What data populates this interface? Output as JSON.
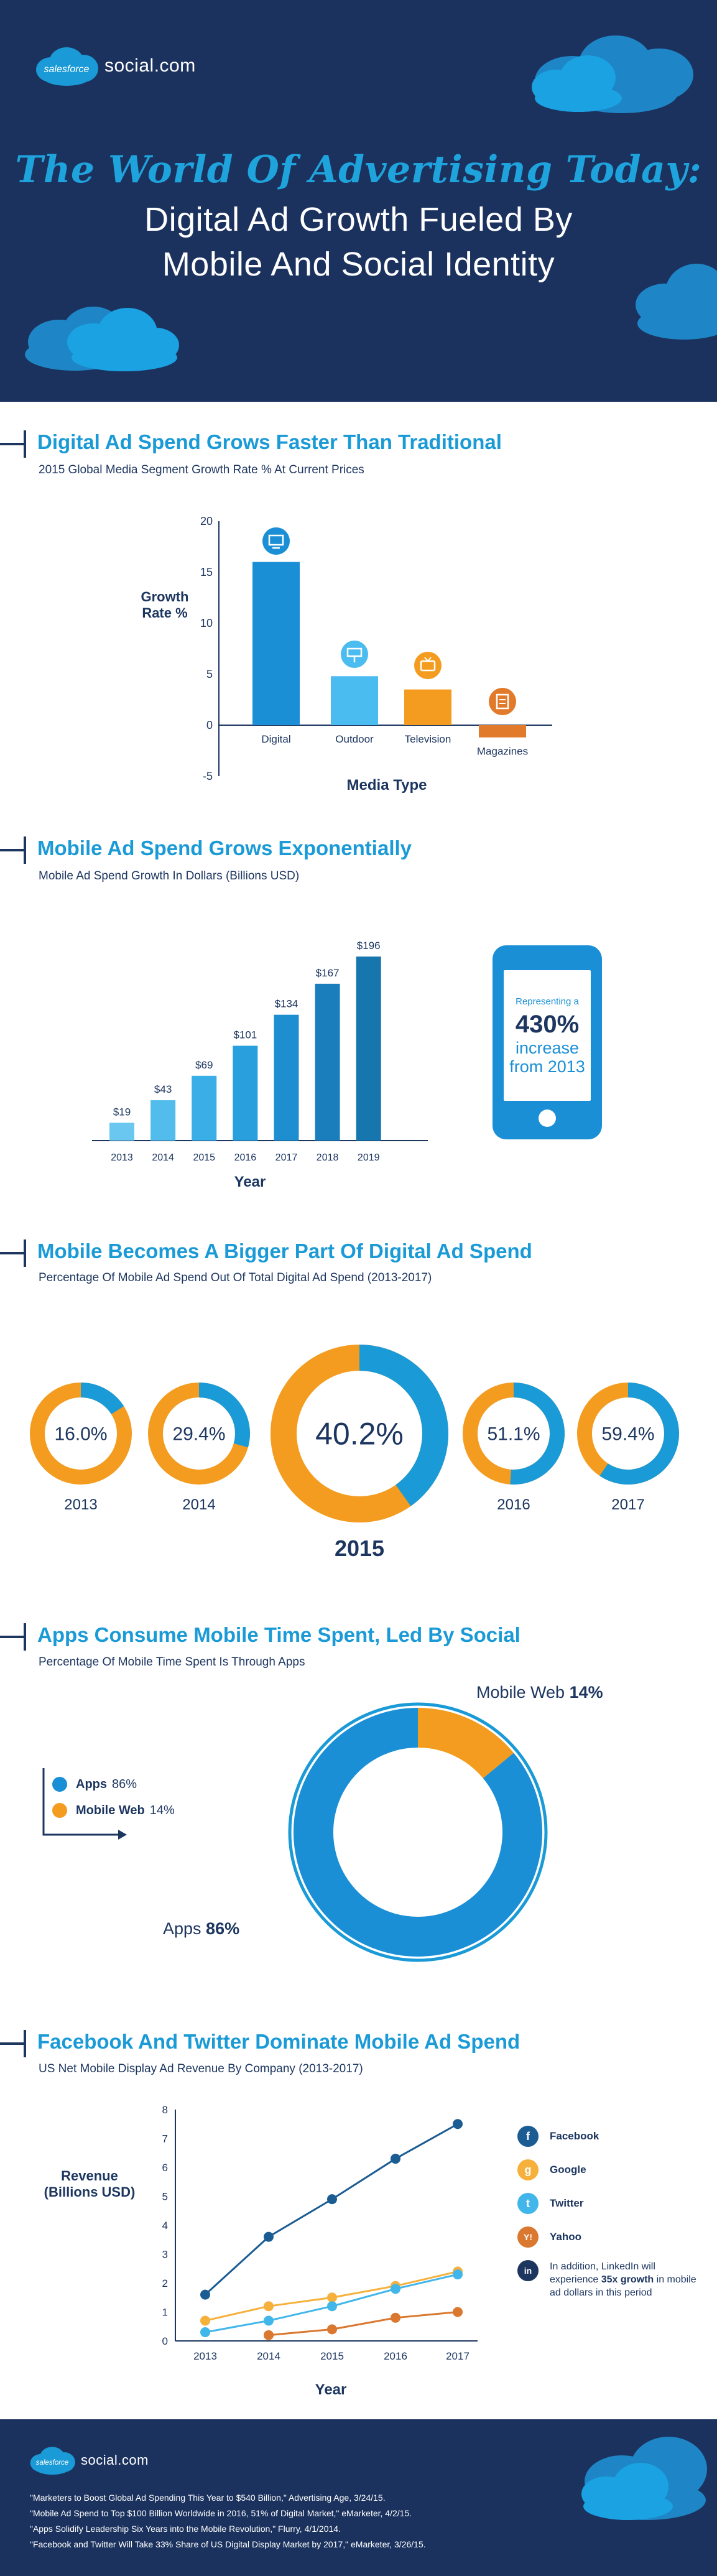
{
  "brand": {
    "logo_word": "salesforce",
    "logo_suffix": "social.com"
  },
  "hero": {
    "script_title": "The World Of Advertising Today:",
    "line1": "Digital Ad Growth Fueled By",
    "line2": "Mobile And Social Identity"
  },
  "colors": {
    "navy": "#1b325e",
    "blue": "#1a9ad6",
    "light_blue": "#4bbcef",
    "orange": "#f39c1f",
    "dark_orange": "#e27a2b",
    "dark_blue": "#1576ad"
  },
  "sections": {
    "s1": {
      "title": "Digital Ad Spend Grows Faster Than Traditional",
      "subtitle": "2015 Global Media Segment Growth Rate % At Current Prices"
    },
    "s2": {
      "title": "Mobile Ad Spend Grows Exponentially",
      "subtitle": "Mobile Ad Spend Growth In Dollars (Billions USD)"
    },
    "s3": {
      "title": "Mobile Becomes A Bigger Part Of Digital Ad Spend",
      "subtitle": "Percentage Of Mobile Ad Spend Out Of Total Digital Ad Spend (2013-2017)"
    },
    "s4": {
      "title": "Apps Consume Mobile Time Spent, Led By Social",
      "subtitle": "Percentage Of Mobile Time Spent Is Through Apps"
    },
    "s5": {
      "title": "Facebook And Twitter Dominate Mobile Ad Spend",
      "subtitle": "US Net Mobile Display Ad Revenue By Company (2013-2017)"
    }
  },
  "phone": {
    "line1": "Representing a",
    "big": "430%",
    "line2": "increase",
    "line3": "from 2013"
  },
  "apps_legend": {
    "apps_label": "Apps",
    "apps_value": "86%",
    "web_label": "Mobile Web",
    "web_value": "14%"
  },
  "fb_legend": {
    "facebook": "Facebook",
    "google": "Google",
    "twitter": "Twitter",
    "yahoo": "Yahoo",
    "note_pre": "In addition, LinkedIn will experience",
    "note_bold": "35x growth",
    "note_post": "in mobile ad dollars in this period",
    "icon_facebook": "f",
    "icon_google": "g",
    "icon_twitter": "t",
    "icon_yahoo": "Y!",
    "icon_linkedin": "in"
  },
  "sources": [
    "\"Marketers to Boost Global Ad Spending This Year to $540 Billion,\" Advertising Age, 3/24/15.",
    "\"Mobile Ad Spend to Top $100 Billion Worldwide in 2016, 51% of Digital Market,\" eMarketer, 4/2/15.",
    "\"Apps Solidify Leadership Six Years into the Mobile Revolution,\" Flurry, 4/1/2014.",
    "\"Facebook and Twitter Will Take 33% Share of US Digital Display Market by 2017,\" eMarketer, 3/26/15."
  ],
  "chart_data": [
    {
      "type": "bar",
      "title": "Digital Ad Spend Grows Faster Than Traditional",
      "subtitle": "2015 Global Media Segment Growth Rate % At Current Prices",
      "xlabel": "Media Type",
      "ylabel": "Growth Rate %",
      "categories": [
        "Digital",
        "Outdoor",
        "Television",
        "Magazines"
      ],
      "values": [
        16,
        4.8,
        3.5,
        -1.2
      ],
      "ylim": [
        -5,
        20
      ],
      "yticks": [
        20,
        15,
        10,
        5,
        0,
        -5
      ],
      "colors": [
        "#1a8fd6",
        "#4bbcef",
        "#f39c1f",
        "#e27a2b"
      ]
    },
    {
      "type": "bar",
      "title": "Mobile Ad Spend Grows Exponentially",
      "subtitle": "Mobile Ad Spend Growth In Dollars (Billions USD)",
      "xlabel": "Year",
      "categories": [
        "2013",
        "2014",
        "2015",
        "2016",
        "2017",
        "2018",
        "2019"
      ],
      "values": [
        19,
        43,
        69,
        101,
        134,
        167,
        196
      ],
      "labels": [
        "$19",
        "$43",
        "$69",
        "$101",
        "$134",
        "$167",
        "$196"
      ],
      "ylim": [
        0,
        200
      ]
    },
    {
      "type": "pie",
      "title": "Mobile Becomes A Bigger Part Of Digital Ad Spend",
      "subtitle": "Percentage Of Mobile Ad Spend Out Of Total Digital Ad Spend (2013-2017)",
      "items": [
        {
          "year": "2013",
          "value": 16.0,
          "label": "16.0%"
        },
        {
          "year": "2014",
          "value": 29.4,
          "label": "29.4%"
        },
        {
          "year": "2015",
          "value": 40.2,
          "label": "40.2%"
        },
        {
          "year": "2016",
          "value": 51.1,
          "label": "51.1%"
        },
        {
          "year": "2017",
          "value": 59.4,
          "label": "59.4%"
        }
      ]
    },
    {
      "type": "pie",
      "title": "Apps Consume Mobile Time Spent, Led By Social",
      "subtitle": "Percentage Of Mobile Time Spent Is Through Apps",
      "slices": [
        {
          "name": "Apps",
          "value": 86,
          "label": "86%"
        },
        {
          "name": "Mobile Web",
          "value": 14,
          "label": "14%"
        }
      ]
    },
    {
      "type": "line",
      "title": "Facebook And Twitter Dominate Mobile Ad Spend",
      "subtitle": "US Net Mobile Display Ad Revenue By Company (2013-2017)",
      "xlabel": "Year",
      "ylabel": "Revenue (Billions USD)",
      "x": [
        "2013",
        "2014",
        "2015",
        "2016",
        "2017"
      ],
      "ylim": [
        0,
        8
      ],
      "yticks": [
        0,
        1,
        2,
        3,
        4,
        5,
        6,
        7,
        8
      ],
      "series": [
        {
          "name": "Facebook",
          "color": "#1b5c93",
          "values": [
            1.6,
            3.6,
            4.9,
            6.3,
            7.5
          ]
        },
        {
          "name": "Google",
          "color": "#f6b13d",
          "values": [
            0.7,
            1.2,
            1.5,
            1.9,
            2.4
          ]
        },
        {
          "name": "Twitter",
          "color": "#41b6ea",
          "values": [
            0.3,
            0.7,
            1.2,
            1.8,
            2.3
          ]
        },
        {
          "name": "Yahoo",
          "color": "#d9782e",
          "values": [
            null,
            0.2,
            0.4,
            0.8,
            1.0
          ]
        }
      ]
    }
  ]
}
